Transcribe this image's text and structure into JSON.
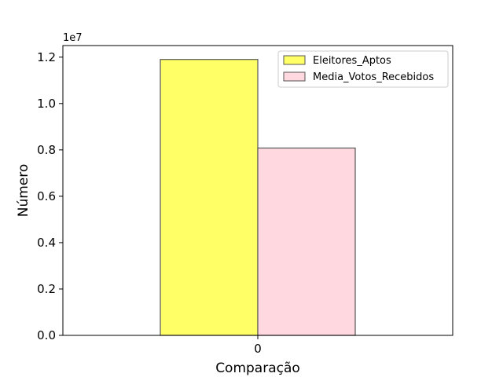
{
  "chart_data": {
    "type": "bar",
    "categories": [
      "0"
    ],
    "series": [
      {
        "name": "Eleitores_Aptos",
        "values": [
          11900000
        ],
        "color": "#ffff66"
      },
      {
        "name": "Media_Votos_Recebidos",
        "values": [
          8080000
        ],
        "color": "#ffd8e0"
      }
    ],
    "xlabel": "Comparação",
    "ylabel": "Número",
    "ylim": [
      0,
      12500000
    ],
    "yticks": [
      0,
      2000000,
      4000000,
      6000000,
      8000000,
      10000000,
      12000000
    ],
    "ytick_labels": [
      "0.0",
      "0.2",
      "0.4",
      "0.6",
      "0.8",
      "1.0",
      "1.2"
    ],
    "y_offset_label": "1e7",
    "legend_position": "upper right",
    "grid": false,
    "bar_edge_color": "#555555"
  }
}
